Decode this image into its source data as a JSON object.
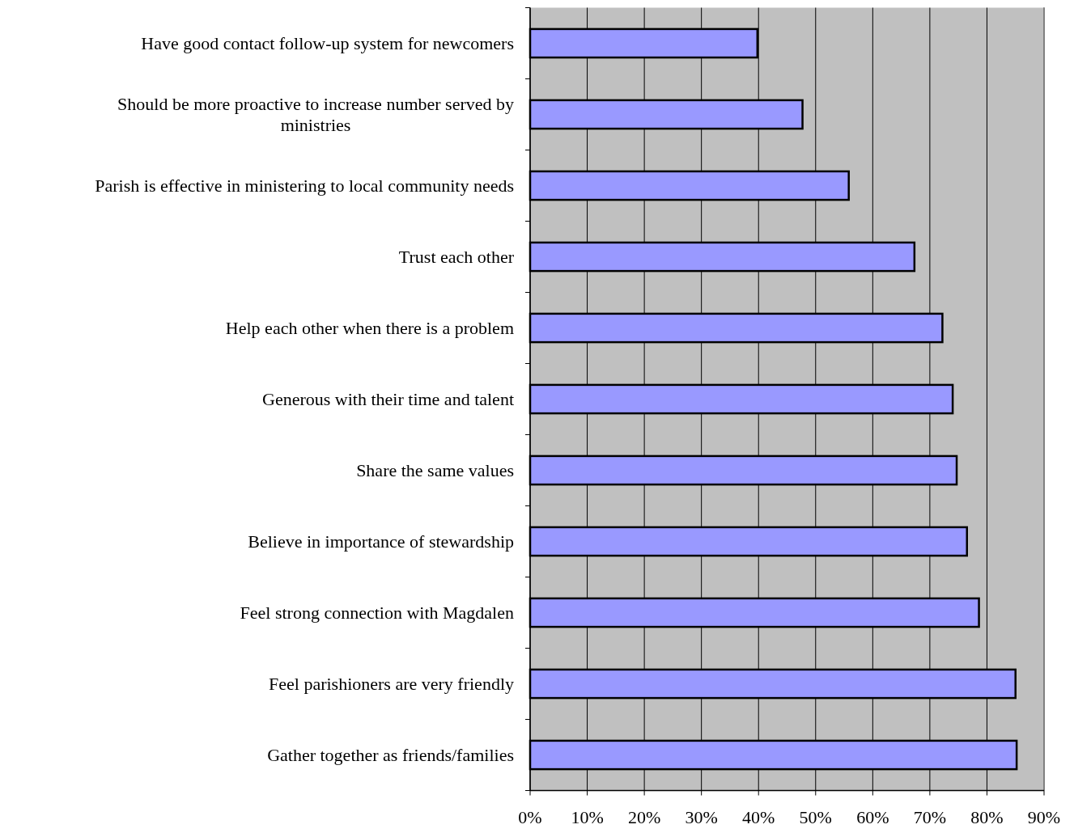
{
  "chart_data": {
    "type": "bar",
    "orientation": "horizontal",
    "categories": [
      "Have good contact follow-up system for newcomers",
      "Should be more proactive to increase number served by ministries",
      "Parish is effective in ministering to local community needs",
      "Trust each other",
      "Help each other when there is a problem",
      "Generous with their time and talent",
      "Share the same values",
      "Believe in importance of stewardship",
      "Feel strong connection with Magdalen",
      "Feel parishioners are very friendly",
      "Gather together as friends/families"
    ],
    "values": [
      39.8,
      47.7,
      55.8,
      67.3,
      72.2,
      74.0,
      74.7,
      76.5,
      78.6,
      85.0,
      85.2
    ],
    "color": "#9999ff",
    "xlim": [
      0,
      90
    ],
    "xticks": [
      {
        "value": 0,
        "label": "0%"
      },
      {
        "value": 10,
        "label": "10%"
      },
      {
        "value": 20,
        "label": "20%"
      },
      {
        "value": 30,
        "label": "30%"
      },
      {
        "value": 40,
        "label": "40%"
      },
      {
        "value": 50,
        "label": "50%"
      },
      {
        "value": 60,
        "label": "60%"
      },
      {
        "value": 70,
        "label": "70%"
      },
      {
        "value": 80,
        "label": "80%"
      },
      {
        "value": 90,
        "label": "90%"
      }
    ],
    "grid": "x"
  }
}
